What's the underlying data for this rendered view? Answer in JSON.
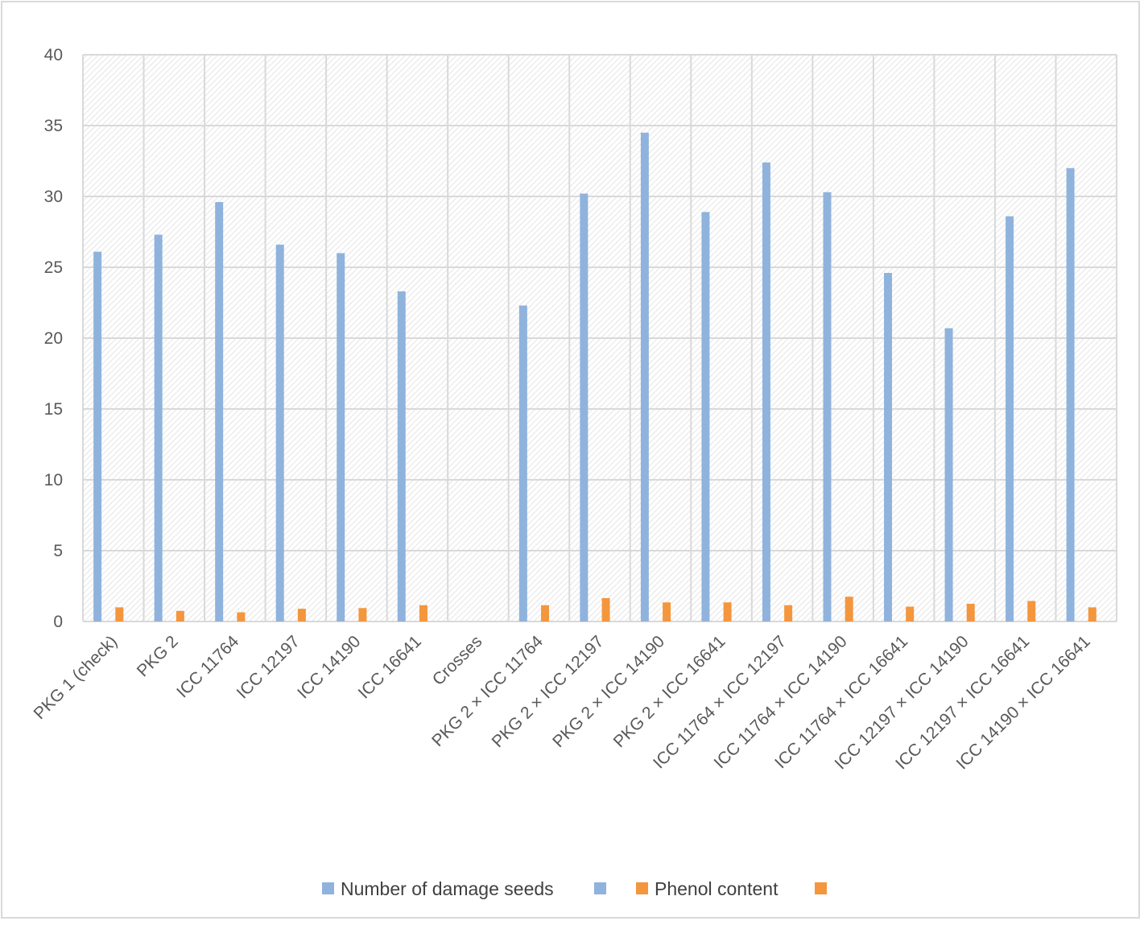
{
  "colors": {
    "series1": "#8fb3dc",
    "series2": "#f4963d",
    "grid": "#d9d9d9",
    "hatch": "#d4d4d4",
    "axis_text": "#595959",
    "legend_text": "#404040"
  },
  "chart_data": {
    "type": "bar",
    "title": "",
    "xlabel": "",
    "ylabel": "",
    "ylim": [
      0,
      40
    ],
    "yticks": [
      0,
      5,
      10,
      15,
      20,
      25,
      30,
      35,
      40
    ],
    "grid": true,
    "legend_position": "bottom",
    "categories": [
      "PKG 1 (check)",
      "PKG 2",
      "ICC 11764",
      "ICC 12197",
      "ICC 14190",
      "ICC 16641",
      "Crosses",
      "PKG 2 × ICC 11764",
      "PKG 2 × ICC 12197",
      "PKG 2 × ICC 14190",
      "PKG 2 × ICC 16641",
      "ICC 11764 × ICC 12197",
      "ICC 11764 × ICC 14190",
      "ICC 11764 × ICC 16641",
      "ICC 12197 × ICC 14190",
      "ICC 12197 × ICC 16641",
      "ICC 14190 × ICC 16641"
    ],
    "series": [
      {
        "name": "Number of damage seeds",
        "values": [
          26.1,
          27.3,
          29.6,
          26.6,
          26.0,
          23.3,
          null,
          22.3,
          30.2,
          34.5,
          28.9,
          32.4,
          30.3,
          24.6,
          20.7,
          28.6,
          32.0
        ]
      },
      {
        "name": "Phenol content",
        "values": [
          1.0,
          0.75,
          0.65,
          0.9,
          0.95,
          1.15,
          null,
          1.15,
          1.65,
          1.35,
          1.35,
          1.15,
          1.75,
          1.05,
          1.25,
          1.45,
          1.0
        ]
      }
    ]
  }
}
